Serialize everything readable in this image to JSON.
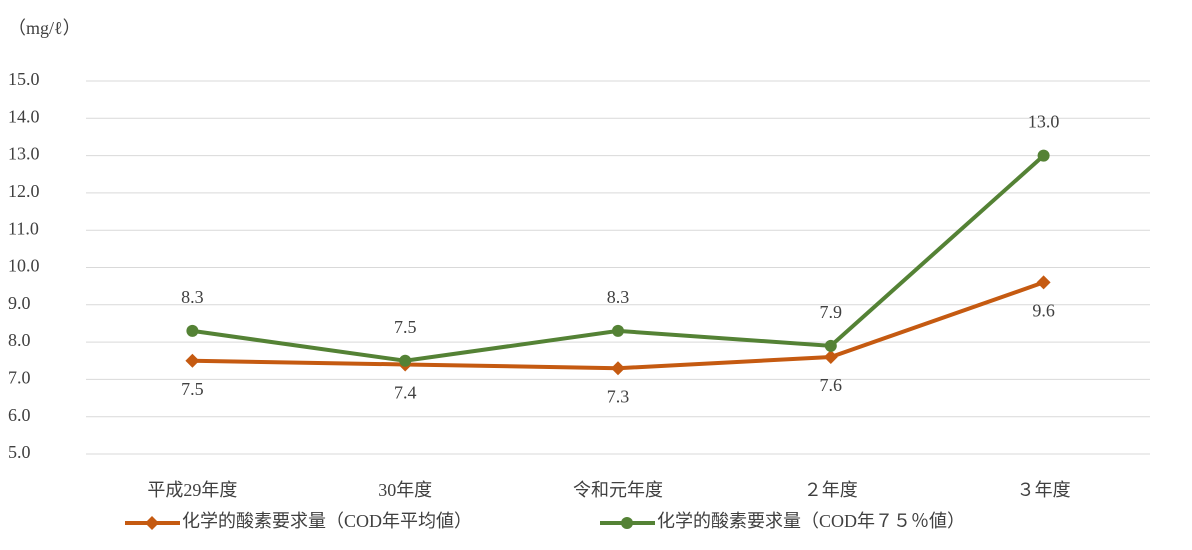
{
  "chart_data": {
    "type": "line",
    "y_axis_label": "（mg/ℓ）",
    "categories": [
      "平成29年度",
      "30年度",
      "令和元年度",
      "２年度",
      "３年度"
    ],
    "series": [
      {
        "name": "化学的酸素要求量（COD年平均値）",
        "color": "#c55a11",
        "marker": "diamond",
        "values": [
          7.5,
          7.4,
          7.3,
          7.6,
          9.6
        ],
        "value_labels": [
          "7.5",
          "7.4",
          "7.3",
          "7.6",
          "9.6"
        ]
      },
      {
        "name": "化学的酸素要求量（COD年７５％値）",
        "color": "#548235",
        "marker": "circle",
        "values": [
          8.3,
          7.5,
          8.3,
          7.9,
          13
        ],
        "value_labels": [
          "8.3",
          "7.5",
          "8.3",
          "7.9",
          "13.0"
        ]
      }
    ],
    "ylim": [
      5,
      15
    ],
    "yticks": [
      {
        "value": 5,
        "label": "5.0"
      },
      {
        "value": 6,
        "label": "6.0"
      },
      {
        "value": 7,
        "label": "7.0"
      },
      {
        "value": 8,
        "label": "8.0"
      },
      {
        "value": 9,
        "label": "9.0"
      },
      {
        "value": 10,
        "label": "10.0"
      },
      {
        "value": 11,
        "label": "11.0"
      },
      {
        "value": 12,
        "label": "12.0"
      },
      {
        "value": 13,
        "label": "13.0"
      },
      {
        "value": 14,
        "label": "14.0"
      },
      {
        "value": 15,
        "label": "15.0"
      }
    ],
    "grid": true,
    "legend": "bottom"
  }
}
